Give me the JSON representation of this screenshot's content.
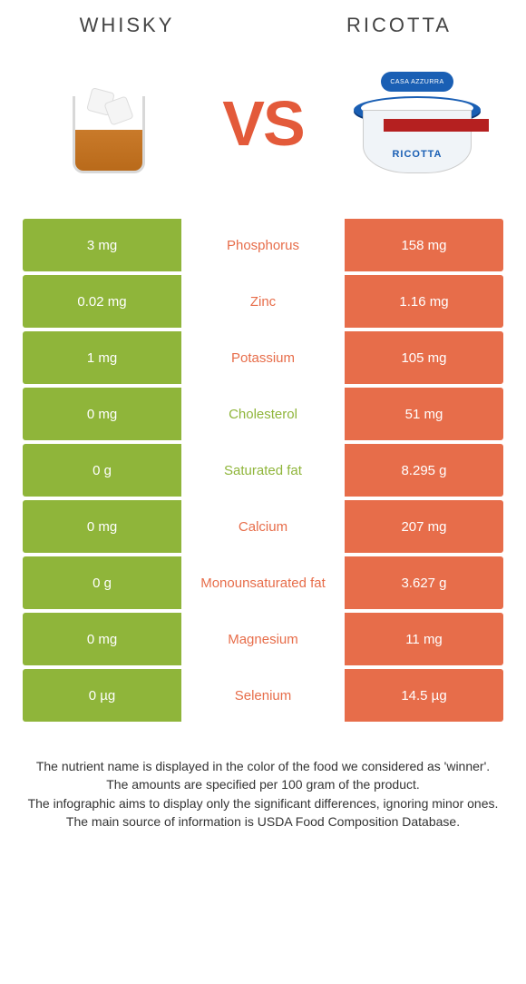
{
  "header": {
    "left": "WHISKY",
    "right": "RICOTTA",
    "vs": "VS"
  },
  "colors": {
    "left": "#8fb53a",
    "right": "#e76d4a",
    "mid_bg": "#ffffff"
  },
  "product_labels": {
    "ricotta_brand": "CASA AZZURRA",
    "ricotta_label": "RICOTTA"
  },
  "rows": [
    {
      "left": "3 mg",
      "name": "Phosphorus",
      "right": "158 mg",
      "winner": "right"
    },
    {
      "left": "0.02 mg",
      "name": "Zinc",
      "right": "1.16 mg",
      "winner": "right"
    },
    {
      "left": "1 mg",
      "name": "Potassium",
      "right": "105 mg",
      "winner": "right"
    },
    {
      "left": "0 mg",
      "name": "Cholesterol",
      "right": "51 mg",
      "winner": "left"
    },
    {
      "left": "0 g",
      "name": "Saturated fat",
      "right": "8.295 g",
      "winner": "left"
    },
    {
      "left": "0 mg",
      "name": "Calcium",
      "right": "207 mg",
      "winner": "right"
    },
    {
      "left": "0 g",
      "name": "Monounsaturated fat",
      "right": "3.627 g",
      "winner": "right"
    },
    {
      "left": "0 mg",
      "name": "Magnesium",
      "right": "11 mg",
      "winner": "right"
    },
    {
      "left": "0 µg",
      "name": "Selenium",
      "right": "14.5 µg",
      "winner": "right"
    }
  ],
  "footer": [
    "The nutrient name is displayed in the color of the food we considered as 'winner'.",
    "The amounts are specified per 100 gram of the product.",
    "The infographic aims to display only the significant differences, ignoring minor ones.",
    "The main source of information is USDA Food Composition Database."
  ]
}
